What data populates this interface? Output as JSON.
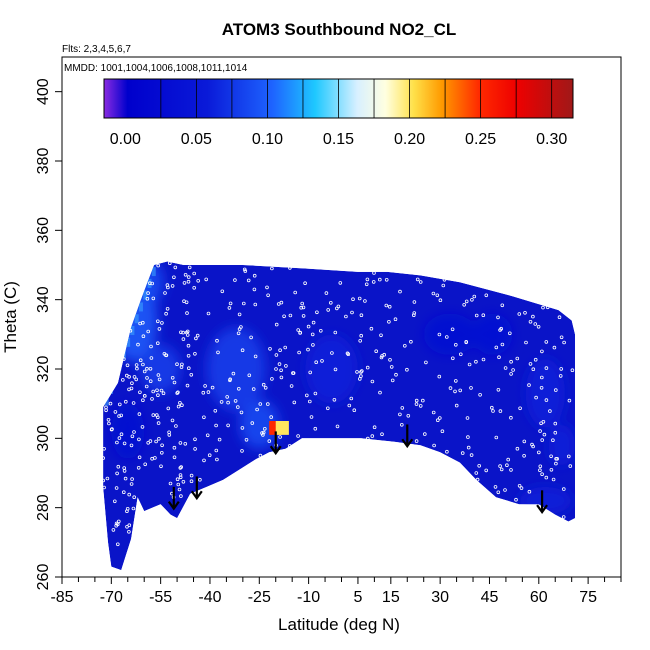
{
  "chart_data": {
    "type": "heatmap",
    "title": "ATOM3 Southbound NO2_CL",
    "flights_label": "Flts: 2,3,4,5,6,7",
    "dates_label": "MMDD: 1001,1004,1006,1008,1011,1014",
    "xlabel": "Latitude (deg N)",
    "ylabel": "Theta (C)",
    "xlim": [
      -85,
      85
    ],
    "ylim": [
      260,
      410
    ],
    "x_tick_labels": [
      "-85",
      "-70",
      "-55",
      "-40",
      "-25",
      "-10",
      "5",
      "15",
      "30",
      "45",
      "60",
      "75"
    ],
    "x_ticks": [
      -85,
      -70,
      -55,
      -40,
      -25,
      -10,
      5,
      15,
      30,
      45,
      60,
      75
    ],
    "x_minor_ticks": [
      -80,
      -75,
      -65,
      -60,
      -50,
      -45,
      -35,
      -30,
      -20,
      -15,
      -5,
      0,
      10,
      20,
      25,
      35,
      40,
      50,
      55,
      65,
      70,
      80,
      85
    ],
    "y_tick_labels": [
      "260",
      "280",
      "300",
      "320",
      "340",
      "360",
      "380",
      "400"
    ],
    "y_ticks": [
      260,
      280,
      300,
      320,
      340,
      360,
      380,
      400
    ],
    "colorbar": {
      "min": -0.015,
      "max": 0.315,
      "tick_labels": [
        "0.00",
        "0.05",
        "0.10",
        "0.15",
        "0.20",
        "0.25",
        "0.30"
      ],
      "ticks": [
        0.0,
        0.05,
        0.1,
        0.15,
        0.2,
        0.25,
        0.3
      ],
      "divisions": [
        0.025,
        0.05,
        0.075,
        0.1,
        0.125,
        0.15,
        0.175,
        0.2,
        0.225,
        0.25,
        0.275,
        0.3
      ]
    },
    "colors": {
      "background_field": "#0a14c8",
      "accent_purple": "#7a28d8",
      "accent_cyan": "#3aa0ff",
      "hotspot": "#ffd700",
      "arrows": "#000000",
      "sample_points": "#ffffff"
    },
    "domain_outline": [
      [
        -72.5,
        286
      ],
      [
        -72.5,
        309
      ],
      [
        -68,
        316
      ],
      [
        -64,
        332
      ],
      [
        -61,
        340
      ],
      [
        -59,
        345
      ],
      [
        -57,
        350
      ],
      [
        -53,
        351
      ],
      [
        -48,
        350
      ],
      [
        -30,
        350
      ],
      [
        -11,
        349
      ],
      [
        5,
        348
      ],
      [
        14,
        348
      ],
      [
        24,
        347
      ],
      [
        36,
        345
      ],
      [
        52,
        341
      ],
      [
        66,
        337
      ],
      [
        70,
        334
      ],
      [
        71,
        330
      ],
      [
        71,
        277
      ],
      [
        69,
        276
      ],
      [
        65,
        278
      ],
      [
        60,
        281
      ],
      [
        54,
        281
      ],
      [
        47,
        283
      ],
      [
        41,
        288
      ],
      [
        36,
        293
      ],
      [
        30,
        296
      ],
      [
        24,
        298
      ],
      [
        16,
        299
      ],
      [
        6,
        300
      ],
      [
        -6,
        300
      ],
      [
        -12,
        300
      ],
      [
        -17,
        297
      ],
      [
        -22,
        296
      ],
      [
        -26,
        294
      ],
      [
        -31,
        291
      ],
      [
        -36,
        288
      ],
      [
        -41,
        286
      ],
      [
        -46,
        284
      ],
      [
        -50,
        277
      ],
      [
        -52,
        278
      ],
      [
        -55,
        281
      ],
      [
        -60,
        279
      ],
      [
        -62,
        283
      ],
      [
        -64,
        271
      ],
      [
        -67,
        262
      ],
      [
        -70,
        263
      ],
      [
        -71,
        270
      ]
    ],
    "features": [
      {
        "lat": -63,
        "theta": 334,
        "rx": 7,
        "ry": 12,
        "value": 0.1
      },
      {
        "lat": -58,
        "theta": 345,
        "rx": 4,
        "ry": 6,
        "value": 0.09
      },
      {
        "lat": -55,
        "theta": 320,
        "rx": 6,
        "ry": 7,
        "value": 0.08
      },
      {
        "lat": -32,
        "theta": 320,
        "rx": 9,
        "ry": 12,
        "value": 0.08
      },
      {
        "lat": -25,
        "theta": 304,
        "rx": 6,
        "ry": 7,
        "value": 0.09
      },
      {
        "lat": -20,
        "theta": 303,
        "rx": 2,
        "ry": 2,
        "value": 0.25
      },
      {
        "lat": -18,
        "theta": 303,
        "rx": 2,
        "ry": 2,
        "value": 0.2
      },
      {
        "lat": -3,
        "theta": 320,
        "rx": 8,
        "ry": 10,
        "value": 0.06
      },
      {
        "lat": 33,
        "theta": 330,
        "rx": 8,
        "ry": 6,
        "value": 0.03
      },
      {
        "lat": 46,
        "theta": 330,
        "rx": 6,
        "ry": 6,
        "value": 0.035
      },
      {
        "lat": 62,
        "theta": 313,
        "rx": 6,
        "ry": 10,
        "value": 0.06
      },
      {
        "lat": 67,
        "theta": 298,
        "rx": 4,
        "ry": 6,
        "value": 0.06
      },
      {
        "lat": 62,
        "theta": 282,
        "rx": 8,
        "ry": 4,
        "value": 0.06
      },
      {
        "lat": -65,
        "theta": 302,
        "rx": 5,
        "ry": 8,
        "value": 0.03
      }
    ],
    "arrows": [
      {
        "lat": -51,
        "theta_top": 286,
        "theta_bottom": 280
      },
      {
        "lat": -44,
        "theta_top": 289,
        "theta_bottom": 283
      },
      {
        "lat": -20,
        "theta_top": 302,
        "theta_bottom": 296
      },
      {
        "lat": 20,
        "theta_top": 304,
        "theta_bottom": 298
      },
      {
        "lat": 61,
        "theta_top": 285,
        "theta_bottom": 279
      }
    ]
  }
}
